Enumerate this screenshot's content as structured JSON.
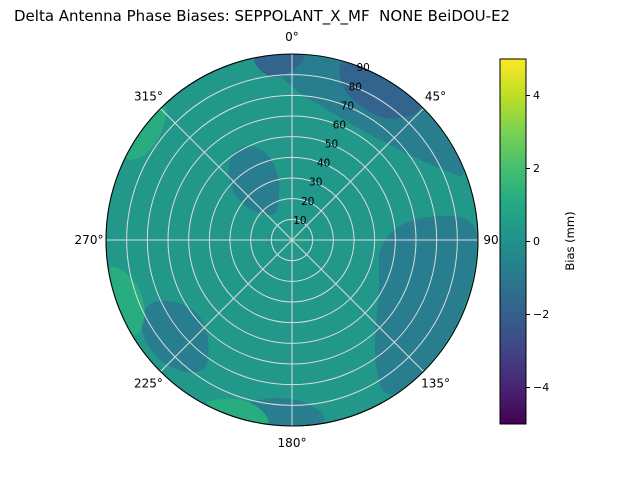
{
  "chart_data": {
    "type": "heatmap",
    "projection": "polar",
    "title": "Delta Antenna Phase Biases: SEPPOLANT_X_MF  NONE BeiDOU-E2",
    "theta_zero_location": "top",
    "theta_direction": "clockwise",
    "angular_ticks": [
      {
        "angle_deg": 0,
        "label": "0°"
      },
      {
        "angle_deg": 45,
        "label": "45°"
      },
      {
        "angle_deg": 90,
        "label": "90"
      },
      {
        "angle_deg": 135,
        "label": "135°"
      },
      {
        "angle_deg": 180,
        "label": "180°"
      },
      {
        "angle_deg": 225,
        "label": "225°"
      },
      {
        "angle_deg": 270,
        "label": "270°"
      },
      {
        "angle_deg": 315,
        "label": "315°"
      }
    ],
    "radial_ticks": [
      10,
      20,
      30,
      40,
      50,
      60,
      70,
      80,
      90
    ],
    "radial_tick_label_angle_deg": 22.5,
    "radial_max": 90,
    "grid_color": "#dcdcdc",
    "background_value_mm": 0.3,
    "regions": [
      {
        "name": "north-rim-band",
        "value_mm": -0.8,
        "points": [
          [
            352,
            88
          ],
          [
            358,
            76
          ],
          [
            8,
            68
          ],
          [
            20,
            64
          ],
          [
            33,
            63
          ],
          [
            46,
            66
          ],
          [
            58,
            73
          ],
          [
            66,
            82
          ],
          [
            71,
            90
          ],
          [
            60,
            90
          ],
          [
            48,
            90
          ],
          [
            36,
            90
          ],
          [
            24,
            90
          ],
          [
            12,
            90
          ],
          [
            0,
            90
          ],
          [
            354,
            90
          ]
        ]
      },
      {
        "name": "inner-northwest-blob",
        "value_mm": -0.8,
        "points": [
          [
            303,
            30
          ],
          [
            316,
            47
          ],
          [
            331,
            53
          ],
          [
            344,
            46
          ],
          [
            349,
            31
          ],
          [
            339,
            18
          ],
          [
            320,
            14
          ]
        ]
      },
      {
        "name": "east-sector",
        "value_mm": -0.8,
        "points": [
          [
            79,
            56
          ],
          [
            94,
            42
          ],
          [
            110,
            45
          ],
          [
            125,
            51
          ],
          [
            139,
            61
          ],
          [
            147,
            74
          ],
          [
            150,
            90
          ],
          [
            138,
            90
          ],
          [
            124,
            90
          ],
          [
            110,
            90
          ],
          [
            96,
            90
          ],
          [
            82,
            90
          ]
        ]
      },
      {
        "name": "southwest-blob",
        "value_mm": -0.8,
        "points": [
          [
            212,
            78
          ],
          [
            220,
            62
          ],
          [
            232,
            57
          ],
          [
            243,
            64
          ],
          [
            247,
            76
          ],
          [
            240,
            86
          ],
          [
            226,
            88
          ]
        ]
      },
      {
        "name": "south-rim-blob",
        "value_mm": -0.8,
        "points": [
          [
            168,
            90
          ],
          [
            173,
            80
          ],
          [
            184,
            76
          ],
          [
            194,
            80
          ],
          [
            199,
            90
          ],
          [
            188,
            90
          ],
          [
            178,
            90
          ]
        ]
      },
      {
        "name": "north-rim-dark-arc",
        "value_mm": -1.8,
        "points": [
          [
            14,
            90
          ],
          [
            19,
            76
          ],
          [
            30,
            72
          ],
          [
            40,
            75
          ],
          [
            46,
            90
          ],
          [
            38,
            90
          ],
          [
            28,
            90
          ],
          [
            20,
            90
          ]
        ]
      },
      {
        "name": "nnw-rim-dark-notch",
        "value_mm": -1.8,
        "points": [
          [
            347,
            90
          ],
          [
            351,
            80
          ],
          [
            357,
            79
          ],
          [
            2,
            84
          ],
          [
            5,
            90
          ],
          [
            358,
            90
          ],
          [
            352,
            90
          ]
        ]
      },
      {
        "name": "west-rim-green-arc",
        "value_mm": 1.2,
        "points": [
          [
            237,
            90
          ],
          [
            242,
            80
          ],
          [
            250,
            77
          ],
          [
            258,
            80
          ],
          [
            263,
            90
          ],
          [
            255,
            90
          ],
          [
            246,
            90
          ]
        ]
      },
      {
        "name": "south-rim-green-blob",
        "value_mm": 1.2,
        "points": [
          [
            186,
            90
          ],
          [
            191,
            82
          ],
          [
            199,
            81
          ],
          [
            205,
            85
          ],
          [
            209,
            90
          ],
          [
            200,
            90
          ],
          [
            192,
            90
          ]
        ]
      },
      {
        "name": "wnw-rim-green-blob",
        "value_mm": 1.2,
        "points": [
          [
            295,
            90
          ],
          [
            299,
            82
          ],
          [
            308,
            81
          ],
          [
            314,
            85
          ],
          [
            318,
            90
          ],
          [
            310,
            90
          ],
          [
            302,
            90
          ]
        ]
      }
    ],
    "colorbar": {
      "label": "Bias (mm)",
      "min": -5,
      "max": 5,
      "ticks": [
        {
          "value": -4,
          "label": "−4"
        },
        {
          "value": -2,
          "label": "−2"
        },
        {
          "value": 0,
          "label": "0"
        },
        {
          "value": 2,
          "label": "2"
        },
        {
          "value": 4,
          "label": "4"
        }
      ],
      "colormap_name": "viridis",
      "colormap_stops": [
        "#440154",
        "#482475",
        "#414487",
        "#355f8d",
        "#2a788e",
        "#21918c",
        "#22a884",
        "#44bf70",
        "#7ad151",
        "#bddf26",
        "#fde725"
      ]
    }
  }
}
